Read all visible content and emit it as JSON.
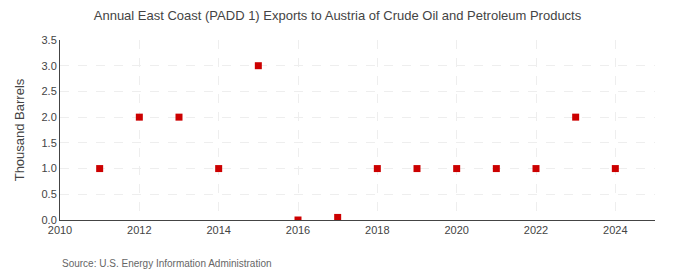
{
  "chart_data": {
    "type": "scatter",
    "title": "Annual East Coast (PADD 1) Exports to Austria of Crude Oil and Petroleum Products",
    "ylabel": "Thousand Barrels",
    "source": "Source: U.S. Energy Information Administration",
    "x": [
      2011,
      2012,
      2013,
      2014,
      2015,
      2016,
      2017,
      2018,
      2019,
      2020,
      2021,
      2022,
      2023,
      2024
    ],
    "values": [
      1.0,
      2.0,
      2.0,
      1.0,
      3.0,
      0.0,
      0.05,
      1.0,
      1.0,
      1.0,
      1.0,
      1.0,
      2.0,
      1.0
    ],
    "color": "#cc0000",
    "marker": "square",
    "xlim": [
      2010,
      2025
    ],
    "xticks": [
      2010,
      2012,
      2014,
      2016,
      2018,
      2020,
      2022,
      2024
    ],
    "ylim": [
      0.0,
      3.5
    ],
    "yticks": [
      {
        "value": 0,
        "label": "0.0"
      },
      0.5,
      {
        "value": 1,
        "label": "1.0"
      },
      1.5,
      {
        "value": 2,
        "label": "2.0"
      },
      2.5,
      {
        "value": 3,
        "label": "3.0"
      },
      3.5
    ],
    "grid": true
  }
}
